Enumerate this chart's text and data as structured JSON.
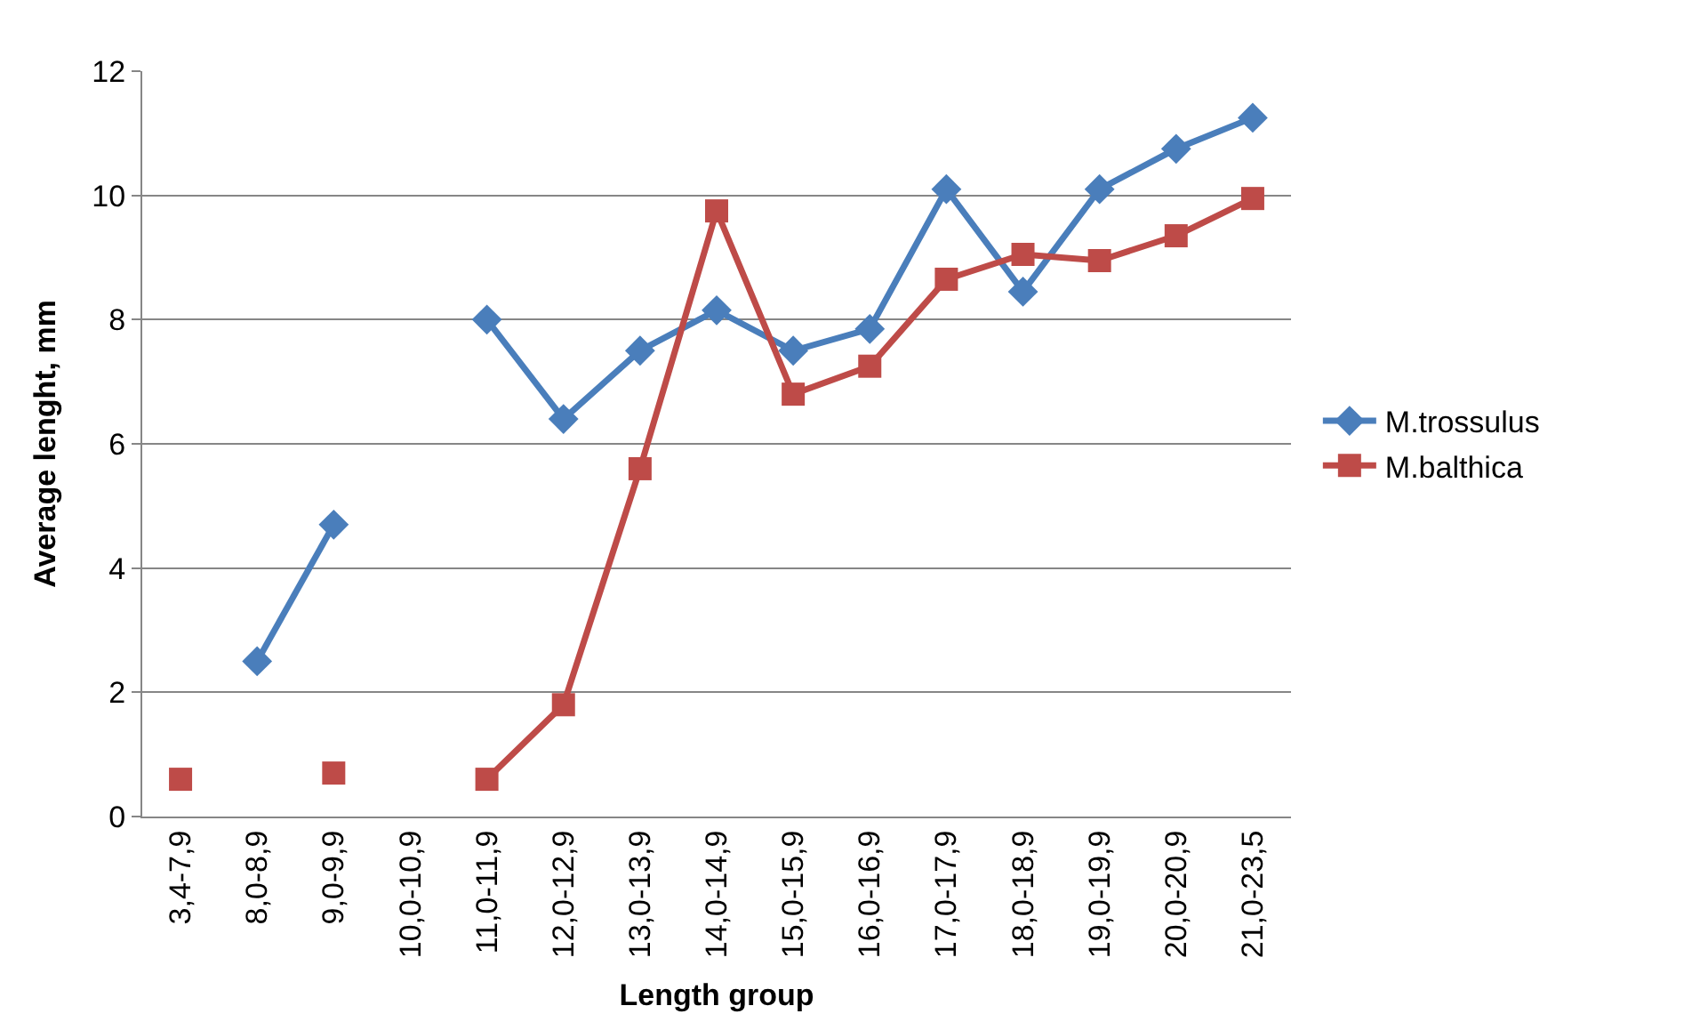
{
  "chart_data": {
    "type": "line",
    "xlabel": "Length group",
    "ylabel": "Average lenght, mm",
    "categories": [
      "3,4-7,9",
      "8,0-8,9",
      "9,0-9,9",
      "10,0-10,9",
      "11,0-11,9",
      "12,0-12,9",
      "13,0-13,9",
      "14,0-14,9",
      "15,0-15,9",
      "16,0-16,9",
      "17,0-17,9",
      "18,0-18,9",
      "19,0-19,9",
      "20,0-20,9",
      "21,0-23,5"
    ],
    "series": [
      {
        "name": "M.trossulus",
        "color": "#4a7ebb",
        "marker": "diamond",
        "values": [
          null,
          2.5,
          4.7,
          null,
          8.0,
          6.4,
          7.5,
          8.15,
          7.5,
          7.85,
          10.1,
          8.45,
          10.1,
          10.75,
          11.25
        ]
      },
      {
        "name": "M.balthica",
        "color": "#be4b48",
        "marker": "square",
        "values": [
          0.6,
          null,
          0.7,
          null,
          0.6,
          1.8,
          5.6,
          9.75,
          6.8,
          7.25,
          8.65,
          9.05,
          8.95,
          9.35,
          9.95
        ]
      }
    ],
    "ylim": [
      0,
      12
    ],
    "yticks": [
      0,
      2,
      4,
      6,
      8,
      10,
      12
    ],
    "grid": "y",
    "legend": "right",
    "line_style": "solid"
  }
}
